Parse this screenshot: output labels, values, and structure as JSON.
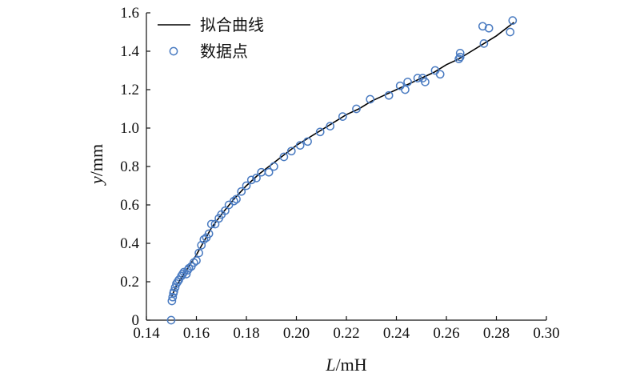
{
  "colors": {
    "line": "#000000",
    "marker": "#4a7bc1",
    "axis": "#111111"
  },
  "chart_data": {
    "type": "scatter",
    "xlabel": {
      "symbol": "L",
      "unit": "/mH"
    },
    "ylabel": {
      "symbol": "y",
      "unit": "/mm"
    },
    "xlim": [
      0.14,
      0.3
    ],
    "ylim": [
      0,
      1.6
    ],
    "xticks": [
      "0.14",
      "0.16",
      "0.18",
      "0.20",
      "0.22",
      "0.24",
      "0.26",
      "0.28",
      "0.30"
    ],
    "yticks": [
      "0",
      "0.2",
      "0.4",
      "0.6",
      "0.8",
      "1.0",
      "1.2",
      "1.4",
      "1.6"
    ],
    "legend": {
      "placement": "top-left",
      "entries": [
        {
          "label": "拟合曲线",
          "marker": "line"
        },
        {
          "label": "数据点",
          "marker": "circle"
        }
      ]
    },
    "series": [
      {
        "name": "拟合曲线",
        "kind": "line",
        "x": [
          0.15,
          0.151,
          0.152,
          0.154,
          0.156,
          0.158,
          0.16,
          0.163,
          0.166,
          0.17,
          0.175,
          0.18,
          0.185,
          0.19,
          0.195,
          0.2,
          0.205,
          0.21,
          0.215,
          0.22,
          0.225,
          0.23,
          0.235,
          0.24,
          0.245,
          0.25,
          0.255,
          0.26,
          0.265,
          0.27,
          0.275,
          0.28,
          0.285,
          0.287
        ],
        "y": [
          0.12,
          0.15,
          0.18,
          0.22,
          0.26,
          0.3,
          0.34,
          0.41,
          0.48,
          0.55,
          0.63,
          0.7,
          0.76,
          0.81,
          0.86,
          0.91,
          0.95,
          0.99,
          1.03,
          1.07,
          1.1,
          1.14,
          1.17,
          1.2,
          1.23,
          1.26,
          1.29,
          1.33,
          1.36,
          1.4,
          1.44,
          1.48,
          1.53,
          1.55
        ]
      },
      {
        "name": "数据点",
        "kind": "scatter",
        "x": [
          0.1499,
          0.1502,
          0.1505,
          0.1508,
          0.151,
          0.1515,
          0.152,
          0.1525,
          0.153,
          0.154,
          0.1545,
          0.155,
          0.156,
          0.1565,
          0.157,
          0.158,
          0.159,
          0.16,
          0.161,
          0.162,
          0.163,
          0.164,
          0.165,
          0.166,
          0.1675,
          0.169,
          0.17,
          0.1715,
          0.173,
          0.175,
          0.176,
          0.178,
          0.18,
          0.182,
          0.184,
          0.186,
          0.189,
          0.191,
          0.195,
          0.198,
          0.2015,
          0.2045,
          0.2095,
          0.2135,
          0.2185,
          0.224,
          0.2295,
          0.237,
          0.2415,
          0.2435,
          0.2445,
          0.2485,
          0.2505,
          0.2515,
          0.2555,
          0.2575,
          0.265,
          0.2655,
          0.2655,
          0.2745,
          0.275,
          0.277,
          0.2855,
          0.2865
        ],
        "y": [
          0.0,
          0.1,
          0.12,
          0.14,
          0.15,
          0.17,
          0.19,
          0.2,
          0.21,
          0.23,
          0.24,
          0.25,
          0.24,
          0.26,
          0.27,
          0.28,
          0.3,
          0.31,
          0.35,
          0.39,
          0.42,
          0.43,
          0.45,
          0.5,
          0.5,
          0.53,
          0.55,
          0.57,
          0.6,
          0.62,
          0.63,
          0.67,
          0.7,
          0.73,
          0.74,
          0.77,
          0.77,
          0.8,
          0.85,
          0.88,
          0.91,
          0.93,
          0.98,
          1.01,
          1.06,
          1.1,
          1.15,
          1.17,
          1.22,
          1.2,
          1.24,
          1.26,
          1.26,
          1.24,
          1.3,
          1.28,
          1.36,
          1.37,
          1.39,
          1.53,
          1.44,
          1.52,
          1.5,
          1.56
        ]
      }
    ]
  }
}
